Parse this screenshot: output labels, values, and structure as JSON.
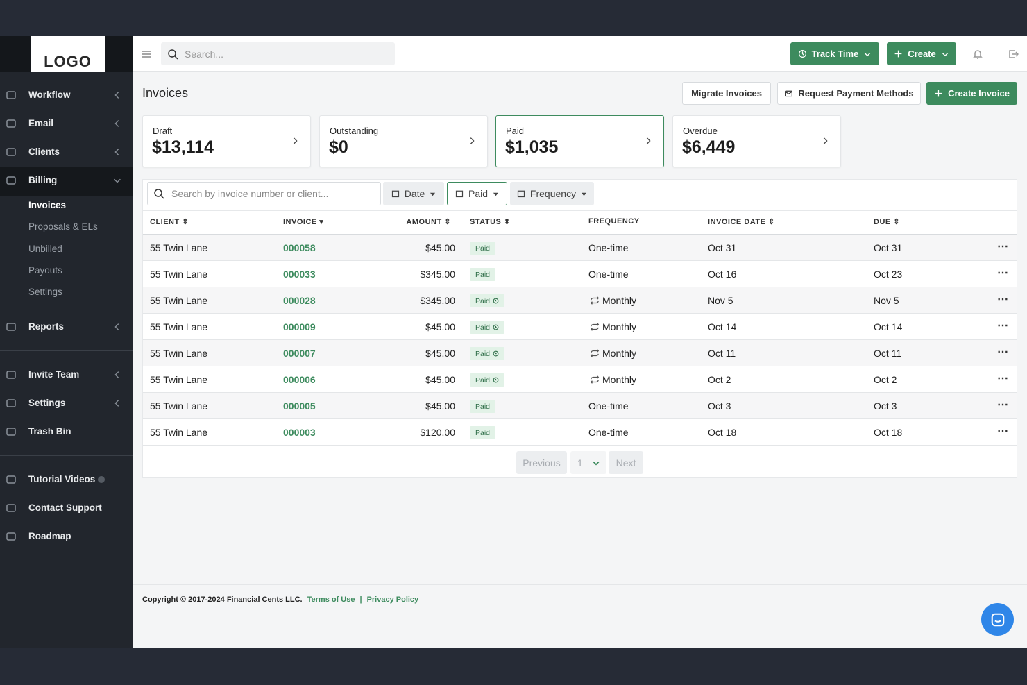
{
  "logo": "LOGO",
  "header": {
    "search_placeholder": "Search...",
    "buttons": [
      "Track Time",
      "Create"
    ]
  },
  "sidebar": {
    "items": [
      "Workflow",
      "Email",
      "Clients",
      "Billing",
      "Reports",
      "Invite Team",
      "Settings",
      "Trash Bin",
      "Tutorial Videos",
      "Contact Support",
      "Roadmap"
    ],
    "billing_subitems": [
      "Invoices",
      "Proposals & ELs",
      "Unbilled",
      "Payouts",
      "Settings"
    ]
  },
  "page_title": "Invoices",
  "actions": [
    "Migrate Invoices",
    "Request Payment Methods",
    "Create Invoice"
  ],
  "summary_cards": [
    {
      "label": "Draft",
      "amount": "$13,114"
    },
    {
      "label": "Outstanding",
      "amount": "$0"
    },
    {
      "label": "Paid",
      "amount": "$1,035"
    },
    {
      "label": "Overdue",
      "amount": "$6,449"
    }
  ],
  "filters": {
    "search_placeholder": "Search by invoice number or client...",
    "buttons": [
      "Date",
      "Paid",
      "Frequency"
    ]
  },
  "table": {
    "columns": [
      "CLIENT",
      "INVOICE",
      "AMOUNT",
      "STATUS",
      "FREQUENCY",
      "INVOICE DATE",
      "DUE"
    ],
    "rows": [
      [
        "55 Twin Lane",
        "000058",
        "$45.00",
        "Paid",
        "One-time",
        "Oct 31",
        "Oct 31"
      ],
      [
        "55 Twin Lane",
        "000033",
        "$345.00",
        "Paid",
        "One-time",
        "Oct 16",
        "Oct 23"
      ],
      [
        "55 Twin Lane",
        "000028",
        "$345.00",
        "Paid",
        "Monthly",
        "Nov 5",
        "Nov 5"
      ],
      [
        "55 Twin Lane",
        "000009",
        "$45.00",
        "Paid",
        "Monthly",
        "Oct 14",
        "Oct 14"
      ],
      [
        "55 Twin Lane",
        "000007",
        "$45.00",
        "Paid",
        "Monthly",
        "Oct 11",
        "Oct 11"
      ],
      [
        "55 Twin Lane",
        "000006",
        "$45.00",
        "Paid",
        "Monthly",
        "Oct 2",
        "Oct 2"
      ],
      [
        "55 Twin Lane",
        "000005",
        "$45.00",
        "Paid",
        "One-time",
        "Oct 3",
        "Oct 3"
      ],
      [
        "55 Twin Lane",
        "000003",
        "$120.00",
        "Paid",
        "One-time",
        "Oct 18",
        "Oct 18"
      ]
    ]
  },
  "pagination": {
    "previous": "Previous",
    "page": "1",
    "next": "Next"
  },
  "footer": {
    "copyright": "Copyright © 2017-2024 Financial Cents LLC.",
    "links": [
      "Terms of Use",
      "Privacy Policy"
    ],
    "separator": "|"
  }
}
